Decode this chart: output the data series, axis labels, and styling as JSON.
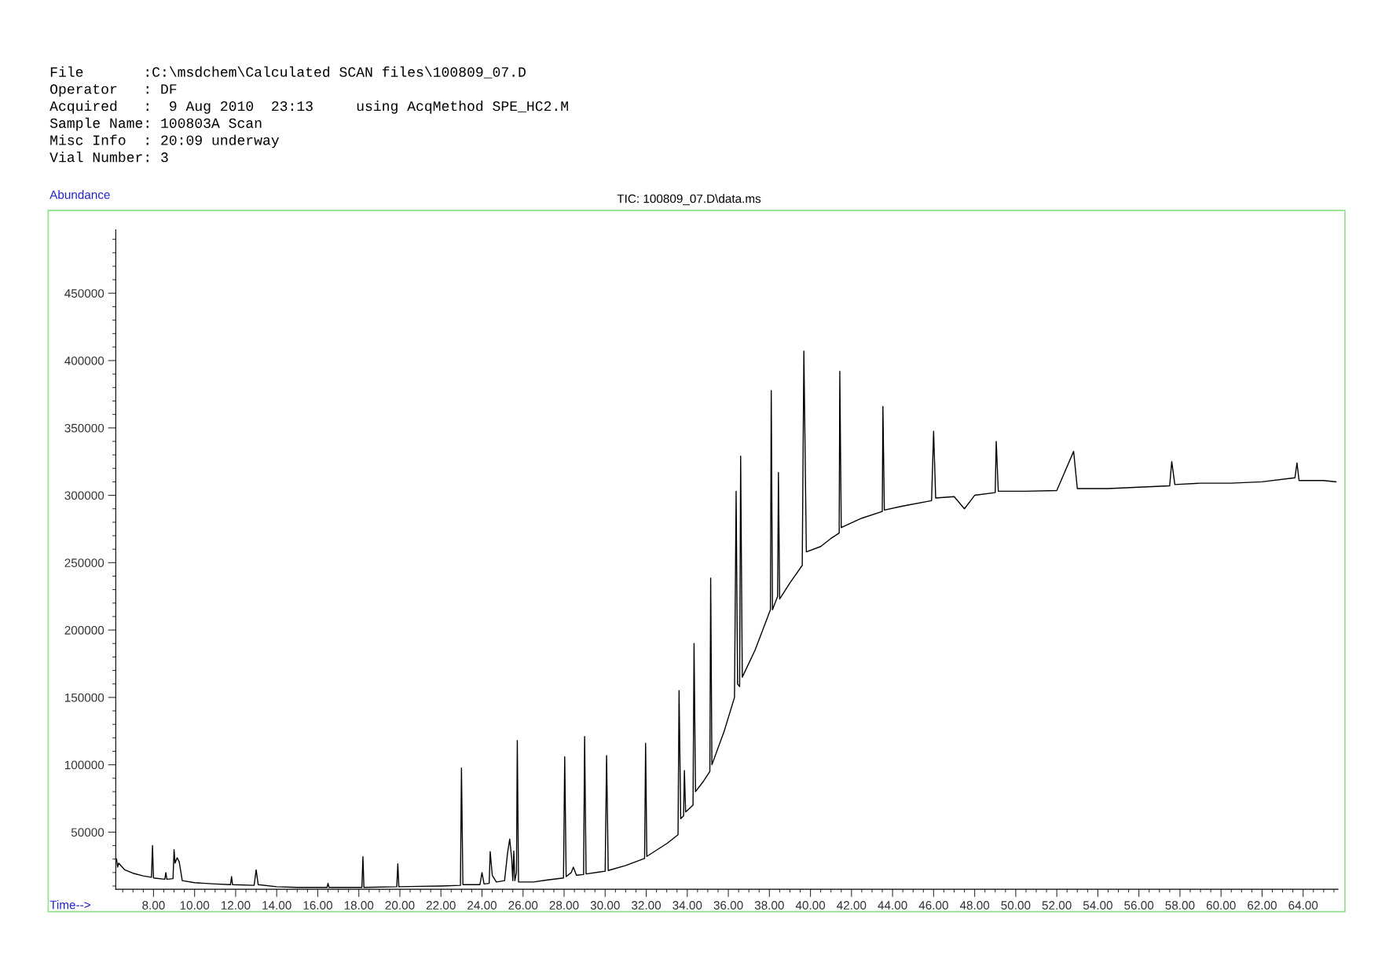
{
  "chart_data": {
    "type": "line",
    "title": "TIC: 100809_07.D\\data.ms",
    "xlabel": "Time-->",
    "ylabel": "Abundance",
    "annotations": [
      "File       :C:\\msdchem\\Calculated SCAN files\\100809_07.D",
      "Operator   : DF",
      "Acquired   :  9 Aug 2010  23:13     using AcqMethod SPE_HC2.M",
      "Sample Name: 100803A Scan",
      "Misc Info  : 20:09 underway",
      "Vial Number: 3"
    ],
    "series": [
      {
        "color": "#000000",
        "x": [
          6.2,
          6.25,
          6.3,
          6.6,
          7.0,
          7.5,
          7.9,
          7.95,
          8.0,
          8.55,
          8.6,
          8.65,
          8.95,
          9.0,
          9.05,
          9.15,
          9.25,
          9.4,
          10.0,
          11.0,
          11.75,
          11.8,
          11.85,
          12.9,
          13.0,
          13.1,
          14.0,
          15.0,
          16.45,
          16.5,
          16.55,
          18.15,
          18.2,
          18.25,
          19.85,
          19.9,
          19.95,
          21.0,
          22.0,
          22.95,
          23.0,
          23.07,
          23.9,
          24.0,
          24.1,
          24.35,
          24.4,
          24.5,
          24.7,
          25.1,
          25.25,
          25.35,
          25.45,
          25.5,
          25.55,
          25.6,
          25.68,
          25.72,
          25.78,
          26.5,
          27.2,
          27.97,
          28.03,
          28.1,
          28.35,
          28.45,
          28.6,
          28.95,
          29.0,
          29.07,
          30.0,
          30.07,
          30.15,
          31.0,
          31.92,
          31.97,
          32.03,
          33.0,
          33.55,
          33.6,
          33.68,
          33.82,
          33.86,
          33.92,
          34.28,
          34.33,
          34.4,
          34.8,
          35.1,
          35.14,
          35.2,
          35.8,
          36.3,
          36.38,
          36.45,
          36.55,
          36.6,
          36.68,
          37.3,
          37.8,
          38.05,
          38.09,
          38.15,
          38.4,
          38.44,
          38.5,
          39.0,
          39.6,
          39.68,
          39.8,
          40.5,
          41.0,
          41.4,
          41.43,
          41.5,
          42.5,
          43.5,
          43.53,
          43.6,
          44.5,
          45.9,
          46.0,
          46.1,
          47.0,
          47.5,
          48.0,
          49.0,
          49.05,
          49.15,
          50.5,
          52.0,
          52.82,
          53.0,
          54.5,
          56.0,
          57.5,
          57.6,
          57.75,
          59.0,
          60.5,
          62.0,
          63.6,
          63.7,
          63.8,
          65.0,
          65.6
        ],
        "values": [
          30000,
          24000,
          27000,
          22000,
          19500,
          17500,
          16500,
          40000,
          16000,
          15000,
          20000,
          15000,
          15500,
          37000,
          27000,
          31000,
          28000,
          14000,
          12500,
          11500,
          11000,
          17000,
          11000,
          10500,
          22000,
          11000,
          9500,
          9000,
          9000,
          12000,
          9000,
          9000,
          31700,
          9000,
          9500,
          26500,
          9500,
          9800,
          10000,
          10500,
          97600,
          11000,
          11000,
          20000,
          11500,
          12000,
          35600,
          18000,
          13000,
          14000,
          35000,
          44800,
          30000,
          14000,
          36000,
          14000,
          20000,
          118000,
          13000,
          13000,
          14500,
          16000,
          106000,
          17000,
          20000,
          24000,
          18000,
          18500,
          121000,
          19000,
          21000,
          106800,
          21500,
          25200,
          30500,
          116000,
          32000,
          41500,
          48000,
          155000,
          60000,
          62000,
          95700,
          65000,
          70000,
          190000,
          80000,
          88000,
          95000,
          238600,
          100000,
          125000,
          150000,
          303000,
          160000,
          158000,
          329000,
          165000,
          185000,
          205000,
          215000,
          377700,
          215000,
          225000,
          317000,
          223000,
          235000,
          248000,
          407000,
          258000,
          262000,
          268000,
          272000,
          392000,
          276000,
          283000,
          288000,
          366000,
          289000,
          292000,
          296000,
          347600,
          298000,
          299000,
          290000,
          300000,
          302000,
          340000,
          303000,
          303000,
          303500,
          332600,
          305000,
          305000,
          306000,
          307000,
          325000,
          308000,
          309000,
          309000,
          310000,
          313000,
          324000,
          311000,
          311000,
          310000
        ]
      }
    ],
    "xlim": [
      6.16,
      65.7
    ],
    "ylim": [
      7600,
      497000
    ],
    "xticks": [
      {
        "value": 8,
        "label": "8.00"
      },
      {
        "value": 10,
        "label": "10.00"
      },
      {
        "value": 12,
        "label": "12.00"
      },
      {
        "value": 14,
        "label": "14.00"
      },
      {
        "value": 16,
        "label": "16.00"
      },
      {
        "value": 18,
        "label": "18.00"
      },
      {
        "value": 20,
        "label": "20.00"
      },
      {
        "value": 22,
        "label": "22.00"
      },
      {
        "value": 24,
        "label": "24.00"
      },
      {
        "value": 26,
        "label": "26.00"
      },
      {
        "value": 28,
        "label": "28.00"
      },
      {
        "value": 30,
        "label": "30.00"
      },
      {
        "value": 32,
        "label": "32.00"
      },
      {
        "value": 34,
        "label": "34.00"
      },
      {
        "value": 36,
        "label": "36.00"
      },
      {
        "value": 38,
        "label": "38.00"
      },
      {
        "value": 40,
        "label": "40.00"
      },
      {
        "value": 42,
        "label": "42.00"
      },
      {
        "value": 44,
        "label": "44.00"
      },
      {
        "value": 46,
        "label": "46.00"
      },
      {
        "value": 48,
        "label": "48.00"
      },
      {
        "value": 50,
        "label": "50.00"
      },
      {
        "value": 52,
        "label": "52.00"
      },
      {
        "value": 54,
        "label": "54.00"
      },
      {
        "value": 56,
        "label": "56.00"
      },
      {
        "value": 58,
        "label": "58.00"
      },
      {
        "value": 60,
        "label": "60.00"
      },
      {
        "value": 62,
        "label": "62.00"
      },
      {
        "value": 64,
        "label": "64.00"
      }
    ],
    "yticks": [
      50000,
      100000,
      150000,
      200000,
      250000,
      300000,
      350000,
      400000,
      450000
    ],
    "grid": false,
    "legend": false,
    "marker": "none",
    "line_style": "solid"
  }
}
